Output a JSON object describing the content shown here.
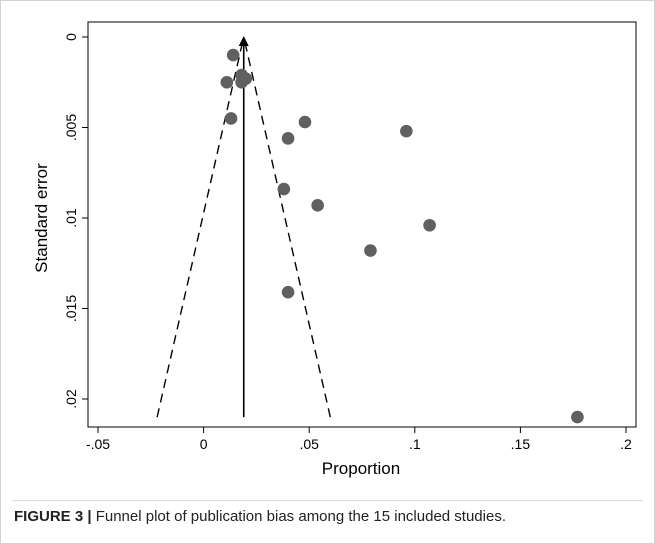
{
  "chart_data": {
    "type": "scatter",
    "title": "",
    "xlabel": "Proportion",
    "ylabel": "Standard error",
    "xlim": [
      -0.05,
      0.2
    ],
    "ylim": [
      0,
      0.02
    ],
    "y_reversed": true,
    "xticks": [
      -0.05,
      0,
      0.05,
      0.1,
      0.15,
      0.2
    ],
    "xtick_labels": [
      "-.05",
      "0",
      ".05",
      ".1",
      ".15",
      ".2"
    ],
    "yticks": [
      0,
      0.005,
      0.01,
      0.015,
      0.02
    ],
    "ytick_labels": [
      "0",
      ".005",
      ".01",
      ".015",
      ".02"
    ],
    "grid": false,
    "legend": "none",
    "series": [
      {
        "points": [
          {
            "x": 0.014,
            "y": 0.001
          },
          {
            "x": 0.018,
            "y": 0.0021
          },
          {
            "x": 0.011,
            "y": 0.0025
          },
          {
            "x": 0.018,
            "y": 0.0025
          },
          {
            "x": 0.02,
            "y": 0.0023
          },
          {
            "x": 0.013,
            "y": 0.0045
          },
          {
            "x": 0.048,
            "y": 0.0047
          },
          {
            "x": 0.04,
            "y": 0.0056
          },
          {
            "x": 0.096,
            "y": 0.0052
          },
          {
            "x": 0.038,
            "y": 0.0084
          },
          {
            "x": 0.054,
            "y": 0.0093
          },
          {
            "x": 0.107,
            "y": 0.0104
          },
          {
            "x": 0.079,
            "y": 0.0118
          },
          {
            "x": 0.04,
            "y": 0.0141
          },
          {
            "x": 0.177,
            "y": 0.021
          }
        ]
      }
    ],
    "pooled_estimate": 0.019,
    "funnel": {
      "apex": [
        0.019,
        0
      ],
      "base_left": [
        -0.022,
        0.021
      ],
      "base_right": [
        0.06,
        0.021
      ]
    },
    "colors": {
      "points": "#606060",
      "lines": "#000000",
      "background": "#ffffff"
    }
  },
  "caption": {
    "label": "FIGURE 3 |",
    "text": " Funnel plot of publication bias among the 15 included studies."
  }
}
